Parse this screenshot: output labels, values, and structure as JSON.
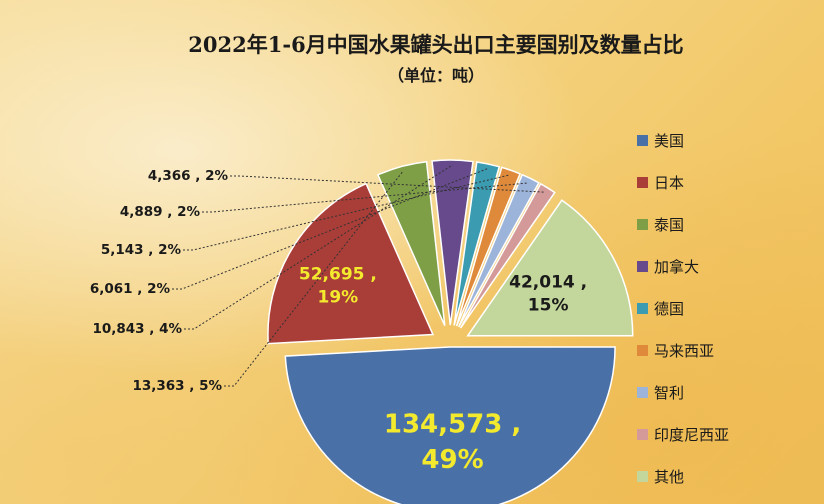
{
  "chart_data": {
    "type": "pie",
    "title": "2022年1-6月中国水果罐头出口主要国别及数量占比",
    "subtitle": "（单位：吨）",
    "slices": [
      {
        "label": "美国",
        "value": 134573,
        "value_text": "134,573",
        "percent_text": "49%",
        "color": "#4a70a8"
      },
      {
        "label": "日本",
        "value": 52695,
        "value_text": "52,695",
        "percent_text": "19%",
        "color": "#a93d38"
      },
      {
        "label": "泰国",
        "value": 13363,
        "value_text": "13,363",
        "percent_text": "5%",
        "color": "#7f9f47"
      },
      {
        "label": "加拿大",
        "value": 10843,
        "value_text": "10,843",
        "percent_text": "4%",
        "color": "#664a8c"
      },
      {
        "label": "德国",
        "value": 6061,
        "value_text": "6,061",
        "percent_text": "2%",
        "color": "#3a9bb1"
      },
      {
        "label": "马来西亚",
        "value": 5143,
        "value_text": "5,143",
        "percent_text": "2%",
        "color": "#df8a3a"
      },
      {
        "label": "智利",
        "value": 4889,
        "value_text": "4,889",
        "percent_text": "2%",
        "color": "#9db4da"
      },
      {
        "label": "印度尼西亚",
        "value": 4366,
        "value_text": "4,366",
        "percent_text": "2%",
        "color": "#d49a9a"
      },
      {
        "label": "其他",
        "value": 42014,
        "value_text": "42,014",
        "percent_text": "15%",
        "color": "#c3d69b"
      }
    ],
    "legend_position": "right"
  }
}
